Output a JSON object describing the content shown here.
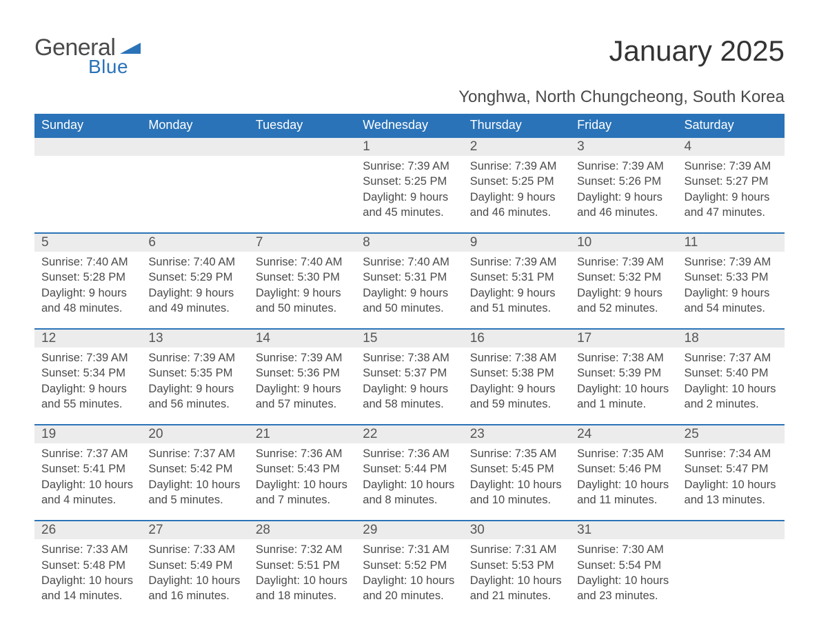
{
  "logo": {
    "text1": "General",
    "text2": "Blue",
    "flag_color": "#2a73b8"
  },
  "title": "January 2025",
  "location": "Yonghwa, North Chungcheong, South Korea",
  "colors": {
    "header_bg": "#2a73b8",
    "header_text": "#ffffff",
    "daynum_bg": "#ececec",
    "border_top": "#2a73b8",
    "body_text": "#4a4a4a",
    "page_bg": "#ffffff"
  },
  "day_headers": [
    "Sunday",
    "Monday",
    "Tuesday",
    "Wednesday",
    "Thursday",
    "Friday",
    "Saturday"
  ],
  "weeks": [
    {
      "days": [
        null,
        null,
        null,
        {
          "n": "1",
          "sunrise": "Sunrise: 7:39 AM",
          "sunset": "Sunset: 5:25 PM",
          "d1": "Daylight: 9 hours",
          "d2": "and 45 minutes."
        },
        {
          "n": "2",
          "sunrise": "Sunrise: 7:39 AM",
          "sunset": "Sunset: 5:25 PM",
          "d1": "Daylight: 9 hours",
          "d2": "and 46 minutes."
        },
        {
          "n": "3",
          "sunrise": "Sunrise: 7:39 AM",
          "sunset": "Sunset: 5:26 PM",
          "d1": "Daylight: 9 hours",
          "d2": "and 46 minutes."
        },
        {
          "n": "4",
          "sunrise": "Sunrise: 7:39 AM",
          "sunset": "Sunset: 5:27 PM",
          "d1": "Daylight: 9 hours",
          "d2": "and 47 minutes."
        }
      ]
    },
    {
      "days": [
        {
          "n": "5",
          "sunrise": "Sunrise: 7:40 AM",
          "sunset": "Sunset: 5:28 PM",
          "d1": "Daylight: 9 hours",
          "d2": "and 48 minutes."
        },
        {
          "n": "6",
          "sunrise": "Sunrise: 7:40 AM",
          "sunset": "Sunset: 5:29 PM",
          "d1": "Daylight: 9 hours",
          "d2": "and 49 minutes."
        },
        {
          "n": "7",
          "sunrise": "Sunrise: 7:40 AM",
          "sunset": "Sunset: 5:30 PM",
          "d1": "Daylight: 9 hours",
          "d2": "and 50 minutes."
        },
        {
          "n": "8",
          "sunrise": "Sunrise: 7:40 AM",
          "sunset": "Sunset: 5:31 PM",
          "d1": "Daylight: 9 hours",
          "d2": "and 50 minutes."
        },
        {
          "n": "9",
          "sunrise": "Sunrise: 7:39 AM",
          "sunset": "Sunset: 5:31 PM",
          "d1": "Daylight: 9 hours",
          "d2": "and 51 minutes."
        },
        {
          "n": "10",
          "sunrise": "Sunrise: 7:39 AM",
          "sunset": "Sunset: 5:32 PM",
          "d1": "Daylight: 9 hours",
          "d2": "and 52 minutes."
        },
        {
          "n": "11",
          "sunrise": "Sunrise: 7:39 AM",
          "sunset": "Sunset: 5:33 PM",
          "d1": "Daylight: 9 hours",
          "d2": "and 54 minutes."
        }
      ]
    },
    {
      "days": [
        {
          "n": "12",
          "sunrise": "Sunrise: 7:39 AM",
          "sunset": "Sunset: 5:34 PM",
          "d1": "Daylight: 9 hours",
          "d2": "and 55 minutes."
        },
        {
          "n": "13",
          "sunrise": "Sunrise: 7:39 AM",
          "sunset": "Sunset: 5:35 PM",
          "d1": "Daylight: 9 hours",
          "d2": "and 56 minutes."
        },
        {
          "n": "14",
          "sunrise": "Sunrise: 7:39 AM",
          "sunset": "Sunset: 5:36 PM",
          "d1": "Daylight: 9 hours",
          "d2": "and 57 minutes."
        },
        {
          "n": "15",
          "sunrise": "Sunrise: 7:38 AM",
          "sunset": "Sunset: 5:37 PM",
          "d1": "Daylight: 9 hours",
          "d2": "and 58 minutes."
        },
        {
          "n": "16",
          "sunrise": "Sunrise: 7:38 AM",
          "sunset": "Sunset: 5:38 PM",
          "d1": "Daylight: 9 hours",
          "d2": "and 59 minutes."
        },
        {
          "n": "17",
          "sunrise": "Sunrise: 7:38 AM",
          "sunset": "Sunset: 5:39 PM",
          "d1": "Daylight: 10 hours",
          "d2": "and 1 minute."
        },
        {
          "n": "18",
          "sunrise": "Sunrise: 7:37 AM",
          "sunset": "Sunset: 5:40 PM",
          "d1": "Daylight: 10 hours",
          "d2": "and 2 minutes."
        }
      ]
    },
    {
      "days": [
        {
          "n": "19",
          "sunrise": "Sunrise: 7:37 AM",
          "sunset": "Sunset: 5:41 PM",
          "d1": "Daylight: 10 hours",
          "d2": "and 4 minutes."
        },
        {
          "n": "20",
          "sunrise": "Sunrise: 7:37 AM",
          "sunset": "Sunset: 5:42 PM",
          "d1": "Daylight: 10 hours",
          "d2": "and 5 minutes."
        },
        {
          "n": "21",
          "sunrise": "Sunrise: 7:36 AM",
          "sunset": "Sunset: 5:43 PM",
          "d1": "Daylight: 10 hours",
          "d2": "and 7 minutes."
        },
        {
          "n": "22",
          "sunrise": "Sunrise: 7:36 AM",
          "sunset": "Sunset: 5:44 PM",
          "d1": "Daylight: 10 hours",
          "d2": "and 8 minutes."
        },
        {
          "n": "23",
          "sunrise": "Sunrise: 7:35 AM",
          "sunset": "Sunset: 5:45 PM",
          "d1": "Daylight: 10 hours",
          "d2": "and 10 minutes."
        },
        {
          "n": "24",
          "sunrise": "Sunrise: 7:35 AM",
          "sunset": "Sunset: 5:46 PM",
          "d1": "Daylight: 10 hours",
          "d2": "and 11 minutes."
        },
        {
          "n": "25",
          "sunrise": "Sunrise: 7:34 AM",
          "sunset": "Sunset: 5:47 PM",
          "d1": "Daylight: 10 hours",
          "d2": "and 13 minutes."
        }
      ]
    },
    {
      "days": [
        {
          "n": "26",
          "sunrise": "Sunrise: 7:33 AM",
          "sunset": "Sunset: 5:48 PM",
          "d1": "Daylight: 10 hours",
          "d2": "and 14 minutes."
        },
        {
          "n": "27",
          "sunrise": "Sunrise: 7:33 AM",
          "sunset": "Sunset: 5:49 PM",
          "d1": "Daylight: 10 hours",
          "d2": "and 16 minutes."
        },
        {
          "n": "28",
          "sunrise": "Sunrise: 7:32 AM",
          "sunset": "Sunset: 5:51 PM",
          "d1": "Daylight: 10 hours",
          "d2": "and 18 minutes."
        },
        {
          "n": "29",
          "sunrise": "Sunrise: 7:31 AM",
          "sunset": "Sunset: 5:52 PM",
          "d1": "Daylight: 10 hours",
          "d2": "and 20 minutes."
        },
        {
          "n": "30",
          "sunrise": "Sunrise: 7:31 AM",
          "sunset": "Sunset: 5:53 PM",
          "d1": "Daylight: 10 hours",
          "d2": "and 21 minutes."
        },
        {
          "n": "31",
          "sunrise": "Sunrise: 7:30 AM",
          "sunset": "Sunset: 5:54 PM",
          "d1": "Daylight: 10 hours",
          "d2": "and 23 minutes."
        },
        null
      ]
    }
  ]
}
